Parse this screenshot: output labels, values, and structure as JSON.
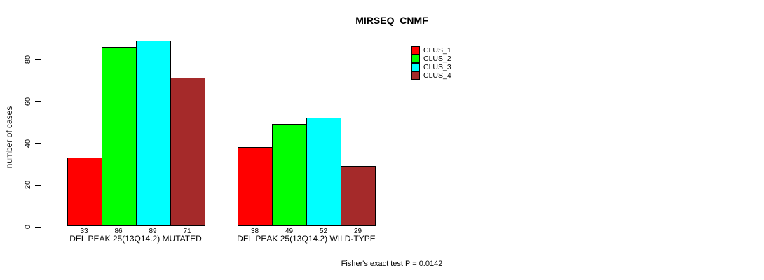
{
  "chart_data": {
    "type": "bar",
    "title": "MIRSEQ_CNMF",
    "ylabel": "number of cases",
    "yticks": [
      0,
      20,
      40,
      60,
      80
    ],
    "ylim": [
      0,
      89
    ],
    "grid": false,
    "legend_position": "top-right",
    "bar_value_labels": true,
    "categories": [
      "DEL PEAK 25(13Q14.2) MUTATED",
      "DEL PEAK 25(13Q14.2) WILD-TYPE"
    ],
    "series": [
      {
        "name": "CLUS_1",
        "color": "#ff0000",
        "values": [
          33,
          38
        ]
      },
      {
        "name": "CLUS_2",
        "color": "#00ff00",
        "values": [
          86,
          49
        ]
      },
      {
        "name": "CLUS_3",
        "color": "#00ffff",
        "values": [
          89,
          52
        ]
      },
      {
        "name": "CLUS_4",
        "color": "#a52a2a",
        "values": [
          71,
          29
        ]
      }
    ],
    "footnote": "Fisher's exact test P = 0.0142"
  }
}
